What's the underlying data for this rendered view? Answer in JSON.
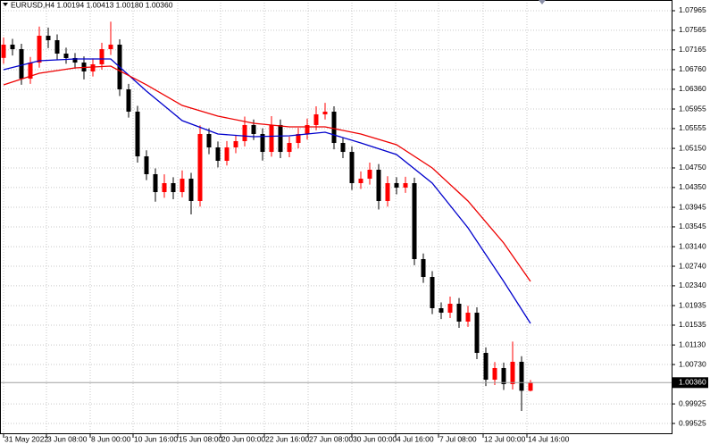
{
  "chart_data": {
    "type": "candlestick",
    "header": "EURUSD,H4  1.00194 1.00413 1.00180 1.00360",
    "up_color": "#ff0000",
    "down_color": "#000000",
    "grid": true,
    "ohlc": [
      [
        1.07,
        1.0742,
        1.0688,
        1.07271
      ],
      [
        1.07271,
        1.0739,
        1.0705,
        1.07179
      ],
      [
        1.07179,
        1.0729,
        1.0645,
        1.06576
      ],
      [
        1.06576,
        1.0702,
        1.0647,
        1.06905
      ],
      [
        1.06905,
        1.0764,
        1.068,
        1.07453
      ],
      [
        1.07453,
        1.0762,
        1.072,
        1.07362
      ],
      [
        1.07362,
        1.0748,
        1.0696,
        1.07088
      ],
      [
        1.07088,
        1.0721,
        1.0688,
        1.06997
      ],
      [
        1.06997,
        1.071,
        1.0678,
        1.06905
      ],
      [
        1.06905,
        1.0703,
        1.0656,
        1.06723
      ],
      [
        1.06723,
        1.0699,
        1.0662,
        1.06869
      ],
      [
        1.06869,
        1.0731,
        1.0676,
        1.07179
      ],
      [
        1.07179,
        1.0774,
        1.0706,
        1.07271
      ],
      [
        1.07271,
        1.0738,
        1.0622,
        1.06357
      ],
      [
        1.06357,
        1.0647,
        1.0578,
        1.05901
      ],
      [
        1.05901,
        1.0602,
        1.0486,
        1.04987
      ],
      [
        1.04987,
        1.0511,
        1.045,
        1.04622
      ],
      [
        1.04622,
        1.0474,
        1.0406,
        1.04256
      ],
      [
        1.04256,
        1.0462,
        1.0414,
        1.04439
      ],
      [
        1.04439,
        1.0456,
        1.0411,
        1.04256
      ],
      [
        1.04256,
        1.047,
        1.0415,
        1.0453
      ],
      [
        1.0453,
        1.0465,
        1.038,
        1.04074
      ],
      [
        1.04074,
        1.0562,
        1.0396,
        1.05444
      ],
      [
        1.05444,
        1.0556,
        1.0503,
        1.0517
      ],
      [
        1.0517,
        1.0529,
        1.0476,
        1.04896
      ],
      [
        1.04896,
        1.053,
        1.048,
        1.0517
      ],
      [
        1.0517,
        1.0542,
        1.0505,
        1.05298
      ],
      [
        1.05298,
        1.058,
        1.0519,
        1.05627
      ],
      [
        1.05627,
        1.0574,
        1.0532,
        1.05444
      ],
      [
        1.05444,
        1.0556,
        1.049,
        1.05078
      ],
      [
        1.05078,
        1.0581,
        1.0498,
        1.05627
      ],
      [
        1.05627,
        1.0574,
        1.0495,
        1.05078
      ],
      [
        1.05078,
        1.0539,
        1.0497,
        1.05261
      ],
      [
        1.05261,
        1.0557,
        1.0515,
        1.05444
      ],
      [
        1.05444,
        1.0576,
        1.0533,
        1.05627
      ],
      [
        1.05627,
        1.0601,
        1.0552,
        1.05846
      ],
      [
        1.05846,
        1.0608,
        1.0574,
        1.05901
      ],
      [
        1.05901,
        1.0601,
        1.0513,
        1.05261
      ],
      [
        1.05261,
        1.0538,
        1.0495,
        1.05078
      ],
      [
        1.05078,
        1.0519,
        1.043,
        1.04439
      ],
      [
        1.04439,
        1.0468,
        1.0432,
        1.0453
      ],
      [
        1.0453,
        1.0486,
        1.0441,
        1.04713
      ],
      [
        1.04713,
        1.0483,
        1.039,
        1.04074
      ],
      [
        1.04074,
        1.0458,
        1.0396,
        1.04439
      ],
      [
        1.04439,
        1.0456,
        1.0421,
        1.04348
      ],
      [
        1.04348,
        1.0457,
        1.0424,
        1.04439
      ],
      [
        1.04439,
        1.0455,
        1.0276,
        1.02886
      ],
      [
        1.02886,
        1.03,
        1.024,
        1.02521
      ],
      [
        1.02521,
        1.0264,
        1.0176,
        1.01882
      ],
      [
        1.01882,
        1.02,
        1.0166,
        1.0179
      ],
      [
        1.0179,
        1.0212,
        1.0168,
        1.01973
      ],
      [
        1.01973,
        1.0209,
        1.0148,
        1.01608
      ],
      [
        1.01608,
        1.0193,
        1.015,
        1.0179
      ],
      [
        1.0179,
        1.019,
        1.0084,
        1.00968
      ],
      [
        1.00968,
        1.0108,
        1.0029,
        1.0042
      ],
      [
        1.0042,
        1.0078,
        1.0031,
        1.00658
      ],
      [
        1.00658,
        1.0077,
        1.0021,
        1.00329
      ],
      [
        1.00329,
        1.012,
        1.0022,
        1.00786
      ],
      [
        1.00786,
        1.009,
        0.9978,
        1.00194
      ],
      [
        1.00194,
        1.00413,
        1.0018,
        1.0036
      ]
    ],
    "series": [
      {
        "color": "#0000cc",
        "x": [
          0,
          4,
          8,
          12,
          16,
          20,
          24,
          28,
          32,
          36,
          40,
          44,
          48,
          52,
          56,
          59
        ],
        "values": [
          1.06759,
          1.06942,
          1.06978,
          1.06978,
          1.06321,
          1.05718,
          1.05444,
          1.05389,
          1.05407,
          1.0548,
          1.05261,
          1.05024,
          1.04439,
          1.03526,
          1.0243,
          1.01571
        ]
      },
      {
        "color": "#ee0000",
        "x": [
          0,
          4,
          8,
          12,
          16,
          20,
          24,
          28,
          32,
          36,
          40,
          44,
          48,
          52,
          56,
          59
        ],
        "values": [
          1.06449,
          1.06686,
          1.06796,
          1.06832,
          1.06449,
          1.06028,
          1.05809,
          1.05663,
          1.0559,
          1.0559,
          1.05444,
          1.05225,
          1.0475,
          1.04074,
          1.03215,
          1.0243
        ]
      }
    ],
    "last_price": {
      "value": 1.0036,
      "label": "1.00360"
    },
    "xlim": [
      -0.4,
      74.8
    ],
    "xticks": [
      {
        "value": 0,
        "label": "31 May 2022"
      },
      {
        "value": 4.8,
        "label": "3 Jun 08:00"
      },
      {
        "value": 9.7,
        "label": "8 Jun 00:00"
      },
      {
        "value": 14.5,
        "label": "10 Jun 16:00"
      },
      {
        "value": 19.5,
        "label": "15 Jun 08:00"
      },
      {
        "value": 24.3,
        "label": "20 Jun 00:00"
      },
      {
        "value": 29.2,
        "label": "22 Jun 16:00"
      },
      {
        "value": 34.1,
        "label": "27 Jun 08:00"
      },
      {
        "value": 39,
        "label": "30 Jun 00:00"
      },
      {
        "value": 43.9,
        "label": "4 Jul 16:00"
      },
      {
        "value": 48.7,
        "label": "7 Jul 08:00"
      },
      {
        "value": 53.7,
        "label": "12 Jul 00:00"
      },
      {
        "value": 58.6,
        "label": "14 Jul 16:00"
      }
    ],
    "ylim": [
      0.99306,
      1.08184
    ],
    "yticks": [
      {
        "value": 1.07965,
        "label": "1.07965"
      },
      {
        "value": 1.07565,
        "label": "1.07565"
      },
      {
        "value": 1.07165,
        "label": "1.07165"
      },
      {
        "value": 1.0676,
        "label": "1.06760"
      },
      {
        "value": 1.0636,
        "label": "1.06360"
      },
      {
        "value": 1.05955,
        "label": "1.05955"
      },
      {
        "value": 1.05555,
        "label": "1.05555"
      },
      {
        "value": 1.0515,
        "label": "1.05150"
      },
      {
        "value": 1.0475,
        "label": "1.04750"
      },
      {
        "value": 1.0435,
        "label": "1.04350"
      },
      {
        "value": 1.03945,
        "label": "1.03945"
      },
      {
        "value": 1.03545,
        "label": "1.03545"
      },
      {
        "value": 1.0314,
        "label": "1.03140"
      },
      {
        "value": 1.0274,
        "label": "1.02740"
      },
      {
        "value": 1.0234,
        "label": "1.02340"
      },
      {
        "value": 1.01935,
        "label": "1.01935"
      },
      {
        "value": 1.01535,
        "label": "1.01535"
      },
      {
        "value": 1.0113,
        "label": "1.01130"
      },
      {
        "value": 1.0073,
        "label": "1.00730"
      },
      {
        "value": 0.99925,
        "label": "0.99925"
      },
      {
        "value": 0.99525,
        "label": "0.99525"
      }
    ]
  }
}
